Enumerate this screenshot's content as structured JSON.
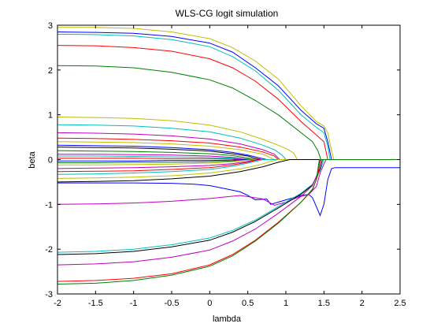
{
  "chart_data": {
    "type": "line",
    "title": "WLS-CG logit simulation",
    "xlabel": "lambda",
    "ylabel": "beta",
    "xlim": [
      -2,
      2.5
    ],
    "ylim": [
      -3,
      3
    ],
    "xticks": [
      -2,
      -1.5,
      -1,
      -0.5,
      0,
      0.5,
      1,
      1.5,
      2,
      2.5
    ],
    "xtick_labels": [
      "-2",
      "-1.5",
      "-1",
      "-0.5",
      "0",
      "0.5",
      "1",
      "1.5",
      "2",
      "2.5"
    ],
    "yticks": [
      -3,
      -2,
      -1,
      0,
      1,
      2,
      3
    ],
    "ytick_labels": [
      "-3",
      "-2",
      "-1",
      "0",
      "1",
      "2",
      "3"
    ],
    "grid": false,
    "legend": "none",
    "series": [
      {
        "color": "#bfbf00",
        "x": [
          -2,
          -1.5,
          -1,
          -0.5,
          0,
          0.3,
          0.6,
          0.9,
          1.2,
          1.4,
          1.5,
          1.55,
          1.6,
          1.63,
          2.5
        ],
        "y": [
          2.95,
          2.95,
          2.93,
          2.85,
          2.7,
          2.5,
          2.2,
          1.8,
          1.2,
          0.85,
          0.75,
          0.6,
          0.2,
          0,
          0
        ]
      },
      {
        "color": "#0000ff",
        "x": [
          -2,
          -1.5,
          -1,
          -0.5,
          0,
          0.3,
          0.6,
          0.9,
          1.2,
          1.4,
          1.5,
          1.55,
          1.6,
          2.5
        ],
        "y": [
          2.85,
          2.84,
          2.82,
          2.75,
          2.6,
          2.4,
          2.05,
          1.65,
          1.1,
          0.8,
          0.7,
          0.4,
          0,
          0
        ]
      },
      {
        "color": "#00bfbf",
        "x": [
          -2,
          -1.5,
          -1,
          -0.5,
          0,
          0.3,
          0.6,
          0.9,
          1.2,
          1.4,
          1.5,
          1.55,
          1.58,
          2.5
        ],
        "y": [
          2.8,
          2.79,
          2.76,
          2.68,
          2.52,
          2.3,
          1.98,
          1.55,
          1.0,
          0.72,
          0.6,
          0.3,
          0,
          0
        ]
      },
      {
        "color": "#ff0000",
        "x": [
          -2,
          -1.5,
          -1,
          -0.5,
          0,
          0.3,
          0.6,
          0.9,
          1.2,
          1.4,
          1.5,
          1.55,
          2.5
        ],
        "y": [
          2.55,
          2.54,
          2.5,
          2.42,
          2.25,
          2.05,
          1.75,
          1.35,
          0.85,
          0.55,
          0.4,
          0,
          0
        ]
      },
      {
        "color": "#007f00",
        "x": [
          -2,
          -1.5,
          -1,
          -0.5,
          0,
          0.3,
          0.6,
          0.9,
          1.2,
          1.35,
          1.42,
          1.46,
          2.5
        ],
        "y": [
          2.1,
          2.09,
          2.05,
          1.95,
          1.78,
          1.6,
          1.32,
          1.0,
          0.6,
          0.4,
          0.2,
          0,
          0
        ]
      },
      {
        "color": "#bfbf00",
        "x": [
          -2,
          -1.5,
          -1,
          -0.5,
          0,
          0.4,
          0.7,
          0.9,
          1.0,
          1.1,
          1.15,
          2.5
        ],
        "y": [
          0.95,
          0.94,
          0.92,
          0.87,
          0.77,
          0.62,
          0.45,
          0.32,
          0.25,
          0.15,
          0,
          0
        ]
      },
      {
        "color": "#00bfbf",
        "x": [
          -2,
          -1.5,
          -1,
          -0.5,
          0,
          0.4,
          0.7,
          0.85,
          0.95,
          1.0,
          2.5
        ],
        "y": [
          0.78,
          0.77,
          0.75,
          0.7,
          0.62,
          0.48,
          0.32,
          0.22,
          0.1,
          0,
          0
        ]
      },
      {
        "color": "#bf00bf",
        "x": [
          -2,
          -1.5,
          -1,
          -0.5,
          0,
          0.4,
          0.7,
          0.85,
          0.92,
          2.5
        ],
        "y": [
          0.6,
          0.59,
          0.57,
          0.53,
          0.46,
          0.35,
          0.22,
          0.12,
          0,
          0
        ]
      },
      {
        "color": "#ff0000",
        "x": [
          -2,
          -1.5,
          -1,
          -0.5,
          0,
          0.4,
          0.7,
          0.85,
          0.9,
          2.5
        ],
        "y": [
          0.48,
          0.47,
          0.45,
          0.42,
          0.37,
          0.28,
          0.17,
          0.08,
          0,
          0
        ]
      },
      {
        "color": "#bfbf00",
        "x": [
          -2,
          -1.5,
          -1,
          -0.5,
          0,
          0.4,
          0.7,
          0.85,
          2.5
        ],
        "y": [
          0.4,
          0.39,
          0.38,
          0.35,
          0.3,
          0.22,
          0.12,
          0,
          0
        ]
      },
      {
        "color": "#0000ff",
        "x": [
          -2,
          -1.5,
          -1,
          -0.5,
          0,
          0.3,
          0.5,
          0.65,
          0.75,
          2.5
        ],
        "y": [
          0.32,
          0.31,
          0.3,
          0.27,
          0.22,
          0.16,
          0.1,
          0.04,
          0,
          0
        ]
      },
      {
        "color": "#000000",
        "x": [
          -2,
          -1.5,
          -1,
          -0.5,
          0,
          0.3,
          0.5,
          0.6,
          0.68,
          2.5
        ],
        "y": [
          0.28,
          0.27,
          0.26,
          0.23,
          0.19,
          0.13,
          0.08,
          0.03,
          0,
          0
        ]
      },
      {
        "color": "#007f00",
        "x": [
          -2,
          -1.5,
          -1,
          -0.5,
          0,
          0.3,
          0.45,
          0.55,
          0.62,
          2.5
        ],
        "y": [
          0.2,
          0.19,
          0.18,
          0.16,
          0.13,
          0.09,
          0.05,
          0.02,
          0,
          0
        ]
      },
      {
        "color": "#bf00bf",
        "x": [
          -2,
          -1.5,
          -1,
          -0.5,
          0,
          0.3,
          0.45,
          0.55,
          2.5
        ],
        "y": [
          0.12,
          0.12,
          0.11,
          0.1,
          0.08,
          0.05,
          0.02,
          0,
          0
        ]
      },
      {
        "color": "#00bfbf",
        "x": [
          -2,
          -1.5,
          -1,
          -0.5,
          0,
          0.3,
          0.45,
          0.5,
          2.5
        ],
        "y": [
          0.08,
          0.08,
          0.07,
          0.06,
          0.05,
          0.03,
          0.01,
          0,
          0
        ]
      },
      {
        "color": "#ff0000",
        "x": [
          -2,
          -1.5,
          -1,
          -0.5,
          0,
          0.3,
          0.45,
          2.5
        ],
        "y": [
          0.03,
          0.03,
          0.03,
          0.02,
          0.02,
          0.01,
          0,
          0
        ]
      },
      {
        "color": "#0000ff",
        "x": [
          -2,
          -1.5,
          -1,
          -0.5,
          0,
          0.3,
          0.45,
          2.5
        ],
        "y": [
          -0.03,
          -0.03,
          -0.03,
          -0.02,
          -0.02,
          -0.01,
          0,
          0
        ]
      },
      {
        "color": "#007f00",
        "x": [
          -2,
          -1.5,
          -1,
          -0.5,
          0,
          0.3,
          0.45,
          0.55,
          2.5
        ],
        "y": [
          -0.07,
          -0.07,
          -0.06,
          -0.06,
          -0.05,
          -0.03,
          -0.01,
          0,
          0
        ]
      },
      {
        "color": "#bfbf00",
        "x": [
          -2,
          -1.5,
          -1,
          -0.5,
          0,
          0.3,
          0.45,
          0.6,
          2.5
        ],
        "y": [
          -0.12,
          -0.12,
          -0.11,
          -0.1,
          -0.08,
          -0.05,
          -0.02,
          0,
          0
        ]
      },
      {
        "color": "#bf00bf",
        "x": [
          -2,
          -1.5,
          -1,
          -0.5,
          0,
          0.3,
          0.5,
          0.62,
          2.5
        ],
        "y": [
          -0.2,
          -0.19,
          -0.18,
          -0.16,
          -0.13,
          -0.09,
          -0.04,
          0,
          0
        ]
      },
      {
        "color": "#ff0000",
        "x": [
          -2,
          -1.5,
          -1,
          -0.5,
          0,
          0.3,
          0.5,
          0.65,
          2.5
        ],
        "y": [
          -0.27,
          -0.26,
          -0.25,
          -0.22,
          -0.18,
          -0.12,
          -0.06,
          0,
          0
        ]
      },
      {
        "color": "#00bfbf",
        "x": [
          -2,
          -1.5,
          -1,
          -0.5,
          0,
          0.3,
          0.5,
          0.7,
          2.5
        ],
        "y": [
          -0.33,
          -0.32,
          -0.3,
          -0.27,
          -0.22,
          -0.15,
          -0.08,
          0,
          0
        ]
      },
      {
        "color": "#bfbf00",
        "x": [
          -2,
          -1.5,
          -1,
          -0.5,
          0,
          0.4,
          0.65,
          0.8,
          0.9,
          2.5
        ],
        "y": [
          -0.42,
          -0.41,
          -0.39,
          -0.36,
          -0.3,
          -0.21,
          -0.12,
          -0.04,
          0,
          0
        ]
      },
      {
        "color": "#000000",
        "x": [
          -2,
          -1.5,
          -1,
          -0.5,
          0,
          0.4,
          0.7,
          0.9,
          1.05,
          2.5
        ],
        "y": [
          -0.5,
          -0.49,
          -0.47,
          -0.43,
          -0.37,
          -0.27,
          -0.16,
          -0.06,
          0,
          0
        ]
      },
      {
        "color": "#0000ff",
        "x": [
          -2,
          -1.5,
          -1,
          -0.5,
          -0.2,
          0,
          0.2,
          0.4,
          0.5,
          0.6,
          0.75,
          0.8,
          0.9,
          1.0,
          1.1,
          1.2,
          1.3,
          1.35,
          1.4,
          1.45,
          1.5,
          1.55,
          1.6,
          1.65,
          2.5
        ],
        "y": [
          -0.52,
          -0.52,
          -0.52,
          -0.53,
          -0.55,
          -0.58,
          -0.65,
          -0.72,
          -0.8,
          -0.9,
          -0.88,
          -1.0,
          -0.95,
          -0.9,
          -0.85,
          -0.8,
          -0.78,
          -0.85,
          -1.05,
          -1.25,
          -1.0,
          -0.45,
          -0.2,
          -0.18,
          -0.18
        ]
      },
      {
        "color": "#bf00bf",
        "x": [
          -2,
          -1.5,
          -1,
          -0.5,
          0,
          0.4,
          0.7,
          0.85,
          1.0,
          1.1,
          1.2,
          1.3,
          1.4,
          1.45,
          1.5,
          1.53,
          2.5
        ],
        "y": [
          -1.0,
          -0.99,
          -0.97,
          -0.93,
          -0.87,
          -0.8,
          -0.88,
          -1.02,
          -0.95,
          -0.88,
          -0.82,
          -0.78,
          -0.6,
          -0.3,
          -0.1,
          0,
          0
        ]
      },
      {
        "color": "#00bfbf",
        "x": [
          -2,
          -1.5,
          -1,
          -0.5,
          0,
          0.3,
          0.6,
          0.9,
          1.2,
          1.35,
          1.45,
          1.5,
          2.5
        ],
        "y": [
          -2.07,
          -2.05,
          -2.0,
          -1.9,
          -1.75,
          -1.58,
          -1.35,
          -1.05,
          -0.75,
          -0.55,
          -0.25,
          0,
          0
        ]
      },
      {
        "color": "#000000",
        "x": [
          -2,
          -1.5,
          -1,
          -0.5,
          0,
          0.3,
          0.6,
          0.9,
          1.2,
          1.35,
          1.45,
          1.48,
          2.5
        ],
        "y": [
          -2.12,
          -2.1,
          -2.05,
          -1.95,
          -1.8,
          -1.62,
          -1.38,
          -1.08,
          -0.77,
          -0.57,
          -0.2,
          0,
          0
        ]
      },
      {
        "color": "#bf00bf",
        "x": [
          -2,
          -1.5,
          -1,
          -0.5,
          0,
          0.3,
          0.6,
          0.9,
          1.2,
          1.35,
          1.42,
          1.46,
          2.5
        ],
        "y": [
          -2.35,
          -2.33,
          -2.28,
          -2.18,
          -2.02,
          -1.82,
          -1.55,
          -1.2,
          -0.82,
          -0.58,
          -0.3,
          0,
          0
        ]
      },
      {
        "color": "#ff0000",
        "x": [
          -2,
          -1.5,
          -1,
          -0.5,
          0,
          0.3,
          0.6,
          0.9,
          1.2,
          1.35,
          1.42,
          1.45,
          2.5
        ],
        "y": [
          -2.72,
          -2.7,
          -2.65,
          -2.55,
          -2.35,
          -2.12,
          -1.8,
          -1.4,
          -0.95,
          -0.68,
          -0.35,
          0,
          0
        ]
      },
      {
        "color": "#007f00",
        "x": [
          -2,
          -1.5,
          -1,
          -0.5,
          0,
          0.3,
          0.6,
          0.9,
          1.2,
          1.35,
          1.4,
          1.44,
          2.5
        ],
        "y": [
          -2.78,
          -2.76,
          -2.7,
          -2.58,
          -2.38,
          -2.15,
          -1.82,
          -1.42,
          -0.95,
          -0.66,
          -0.45,
          0,
          0
        ]
      }
    ]
  }
}
